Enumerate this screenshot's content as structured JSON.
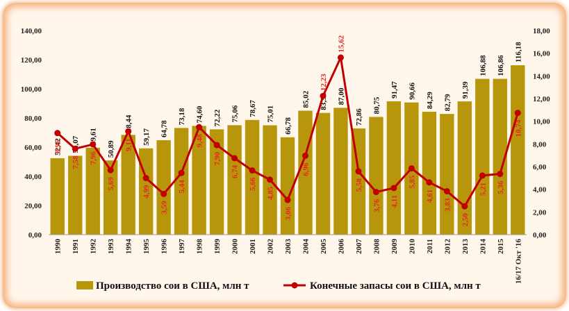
{
  "chart_data": {
    "type": "bar",
    "categories": [
      "1990",
      "1991",
      "1992",
      "1993",
      "1994",
      "1995",
      "1996",
      "1997",
      "1998",
      "1999",
      "2000",
      "2001",
      "2002",
      "2003",
      "2004",
      "2005",
      "2006",
      "2007",
      "2008",
      "2009",
      "2010",
      "2011",
      "2012",
      "2013",
      "2014",
      "2015",
      "16/17 Окт '16"
    ],
    "series": [
      {
        "name": "Производство сои в США, млн т",
        "type": "bar",
        "axis": "left",
        "color": "#b8960b",
        "values": [
          52.42,
          54.07,
          59.61,
          50.89,
          68.44,
          59.17,
          64.78,
          73.18,
          74.6,
          72.22,
          75.06,
          78.67,
          75.01,
          66.78,
          85.02,
          83.51,
          87.0,
          72.86,
          80.75,
          91.47,
          90.66,
          84.29,
          82.79,
          91.39,
          106.88,
          106.86,
          116.18
        ],
        "labels": [
          "52,42",
          "54,07",
          "59,61",
          "50,89",
          "68,44",
          "59,17",
          "64,78",
          "73,18",
          "74,60",
          "72,22",
          "75,06",
          "78,67",
          "75,01",
          "66,78",
          "85,02",
          "83,51",
          "87,00",
          "72,86",
          "80,75",
          "91,47",
          "90,66",
          "84,29",
          "82,79",
          "91,39",
          "106,88",
          "106,86",
          "116,18"
        ]
      },
      {
        "name": "Конечные запасы сои в США, млн т",
        "type": "line",
        "axis": "right",
        "color": "#c00000",
        "label_color": "#e8251d",
        "values": [
          8.96,
          7.58,
          7.96,
          5.69,
          9.11,
          4.99,
          3.59,
          5.44,
          9.48,
          7.9,
          6.74,
          5.66,
          4.85,
          3.06,
          6.96,
          12.23,
          15.62,
          5.58,
          3.76,
          4.11,
          5.85,
          4.61,
          3.83,
          2.5,
          5.21,
          5.36,
          10.74
        ],
        "labels": [
          "8,96",
          "7,58",
          "7,96",
          "5,69",
          "9,11",
          "4,99",
          "3,59",
          "5,44",
          "9,48",
          "7,90",
          "6,74",
          "5,66",
          "4,85",
          "3,06",
          "6,96",
          "12,23",
          "15,62",
          "5,58",
          "3,76",
          "4,11",
          "5,85",
          "4,61",
          "3,83",
          "2,50",
          "5,21",
          "5,36",
          "10,74"
        ]
      }
    ],
    "ylim_left": [
      0,
      140
    ],
    "yticks_left": [
      "0,00",
      "20,00",
      "40,00",
      "60,00",
      "80,00",
      "100,00",
      "120,00",
      "140,00"
    ],
    "ylim_right": [
      0,
      18
    ],
    "yticks_right": [
      "0,00",
      "2,00",
      "4,00",
      "6,00",
      "8,00",
      "10,00",
      "12,00",
      "14,00",
      "16,00",
      "18,00"
    ],
    "grid": false,
    "legend_position": "bottom"
  }
}
